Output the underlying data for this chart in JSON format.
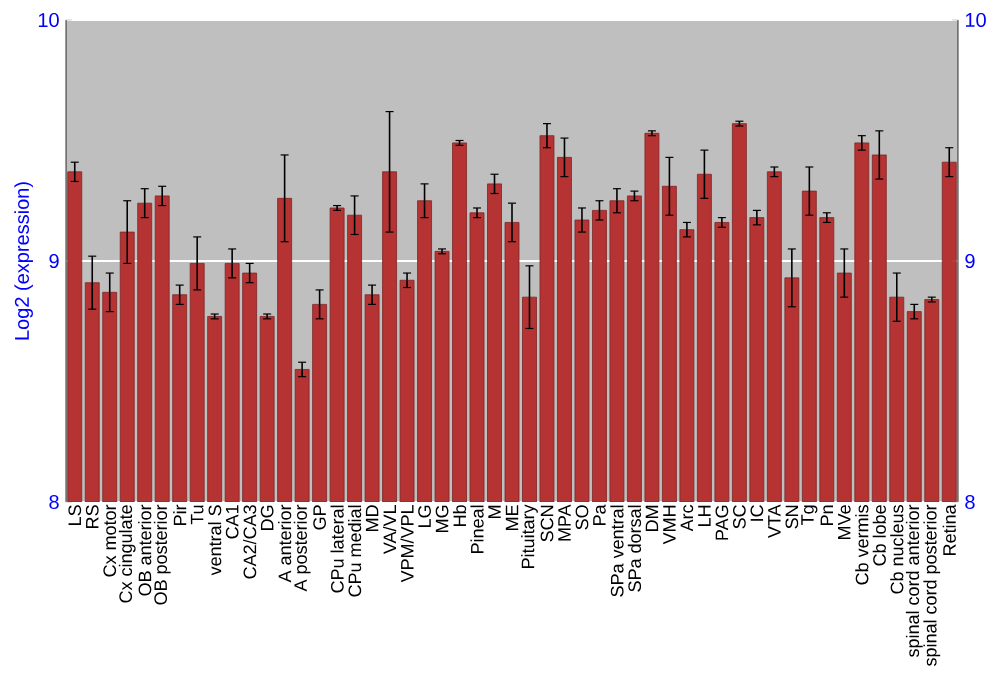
{
  "chart_data": {
    "type": "bar",
    "ylabel": "Log2 (expression)",
    "categories": [
      "LS",
      "RS",
      "Cx motor",
      "Cx cingulate",
      "OB anterior",
      "OB posterior",
      "Pir",
      "Tu",
      "ventral S",
      "CA1",
      "CA2/CA3",
      "DG",
      "A anterior",
      "A posterior",
      "GP",
      "CPu lateral",
      "CPu medial",
      "MD",
      "VA/VL",
      "VPM/VPL",
      "LG",
      "MG",
      "Hb",
      "Pineal",
      "M",
      "ME",
      "Pituitary",
      "SCN",
      "MPA",
      "SO",
      "Pa",
      "SPa ventral",
      "SPa dorsal",
      "DM",
      "VMH",
      "Arc",
      "LH",
      "PAG",
      "SC",
      "IC",
      "VTA",
      "SN",
      "Tg",
      "Pn",
      "MVe",
      "Cb vermis",
      "Cb lobe",
      "Cb nucleus",
      "spinal cord anterior",
      "spinal cord posterior",
      "Retina"
    ],
    "values": [
      9.37,
      8.91,
      8.87,
      9.12,
      9.24,
      9.27,
      8.86,
      8.99,
      8.77,
      8.99,
      8.95,
      8.77,
      9.26,
      8.55,
      8.82,
      9.22,
      9.19,
      8.86,
      9.37,
      8.92,
      9.25,
      9.04,
      9.49,
      9.2,
      9.32,
      9.16,
      8.85,
      9.52,
      9.43,
      9.17,
      9.21,
      9.25,
      9.27,
      9.53,
      9.31,
      9.13,
      9.36,
      9.16,
      9.57,
      9.18,
      9.37,
      8.93,
      9.29,
      9.18,
      8.95,
      9.49,
      9.44,
      8.85,
      8.79,
      8.84,
      9.41
    ],
    "errors": [
      0.04,
      0.11,
      0.08,
      0.13,
      0.06,
      0.04,
      0.04,
      0.11,
      0.01,
      0.06,
      0.04,
      0.01,
      0.18,
      0.03,
      0.06,
      0.01,
      0.08,
      0.04,
      0.25,
      0.03,
      0.07,
      0.01,
      0.01,
      0.02,
      0.04,
      0.08,
      0.13,
      0.05,
      0.08,
      0.05,
      0.04,
      0.05,
      0.02,
      0.01,
      0.12,
      0.03,
      0.1,
      0.02,
      0.01,
      0.03,
      0.02,
      0.12,
      0.1,
      0.02,
      0.1,
      0.03,
      0.1,
      0.1,
      0.03,
      0.01,
      0.06
    ],
    "color": "#b53333",
    "ylim": [
      8,
      10
    ],
    "yticks": [
      8,
      9,
      10
    ],
    "y2lim": [
      8,
      10
    ],
    "y2ticks": [
      8,
      9,
      10
    ],
    "grid": "y"
  }
}
